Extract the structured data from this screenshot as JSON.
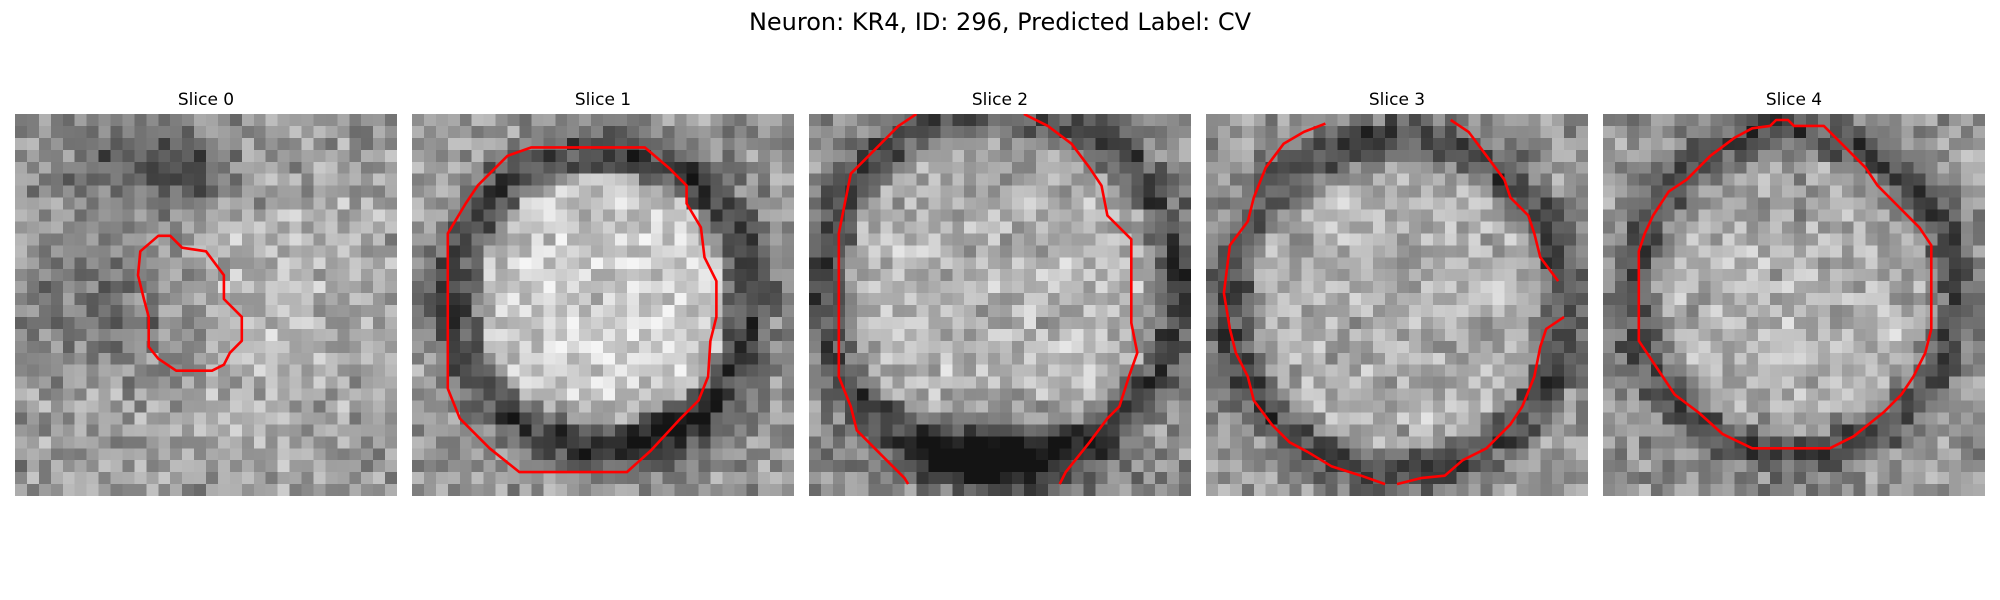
{
  "figure": {
    "title": "Neuron: KR4, ID: 296, Predicted Label: CV"
  },
  "slices": [
    {
      "label": "Slice 0",
      "contour_color": "#ff0000"
    },
    {
      "label": "Slice 1",
      "contour_color": "#ff0000"
    },
    {
      "label": "Slice 2",
      "contour_color": "#ff0000"
    },
    {
      "label": "Slice 3",
      "contour_color": "#ff0000"
    },
    {
      "label": "Slice 4",
      "contour_color": "#ff0000"
    }
  ]
}
